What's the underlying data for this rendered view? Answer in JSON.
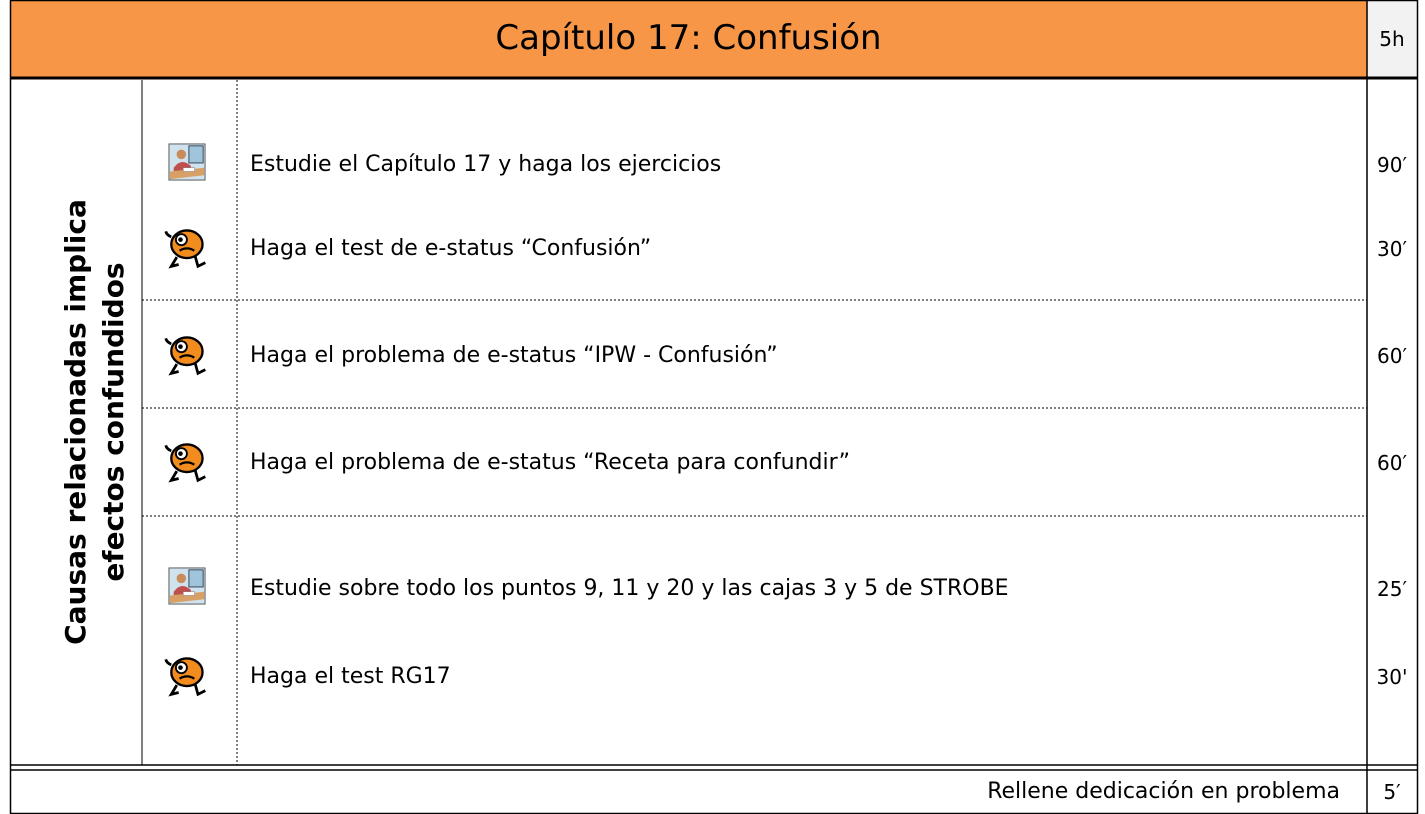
{
  "header": {
    "title": "Capítulo 17: Confusión",
    "time": "5h"
  },
  "section": {
    "lines": [
      "Causas relacionadas implica",
      "efectos confundidos"
    ]
  },
  "items": [
    {
      "text": "Estudie el Capítulo 17 y haga los ejercicios",
      "time": "90′"
    },
    {
      "text": "Haga el test de e-status “Confusión”",
      "time": "30′"
    },
    {
      "text": "Haga el problema de e-status “IPW - Confusión”",
      "time": "60′"
    },
    {
      "text": "Haga el problema de e-status “Receta para confundir”",
      "time": "60′"
    },
    {
      "text": "Estudie sobre todo los puntos 9, 11 y 20 y las cajas 3 y 5 de STROBE",
      "time": "25′"
    },
    {
      "text": "Haga el test RG17",
      "time": "30'"
    }
  ],
  "footer": {
    "text": "Rellene dedicación en problema",
    "time": "5′"
  }
}
